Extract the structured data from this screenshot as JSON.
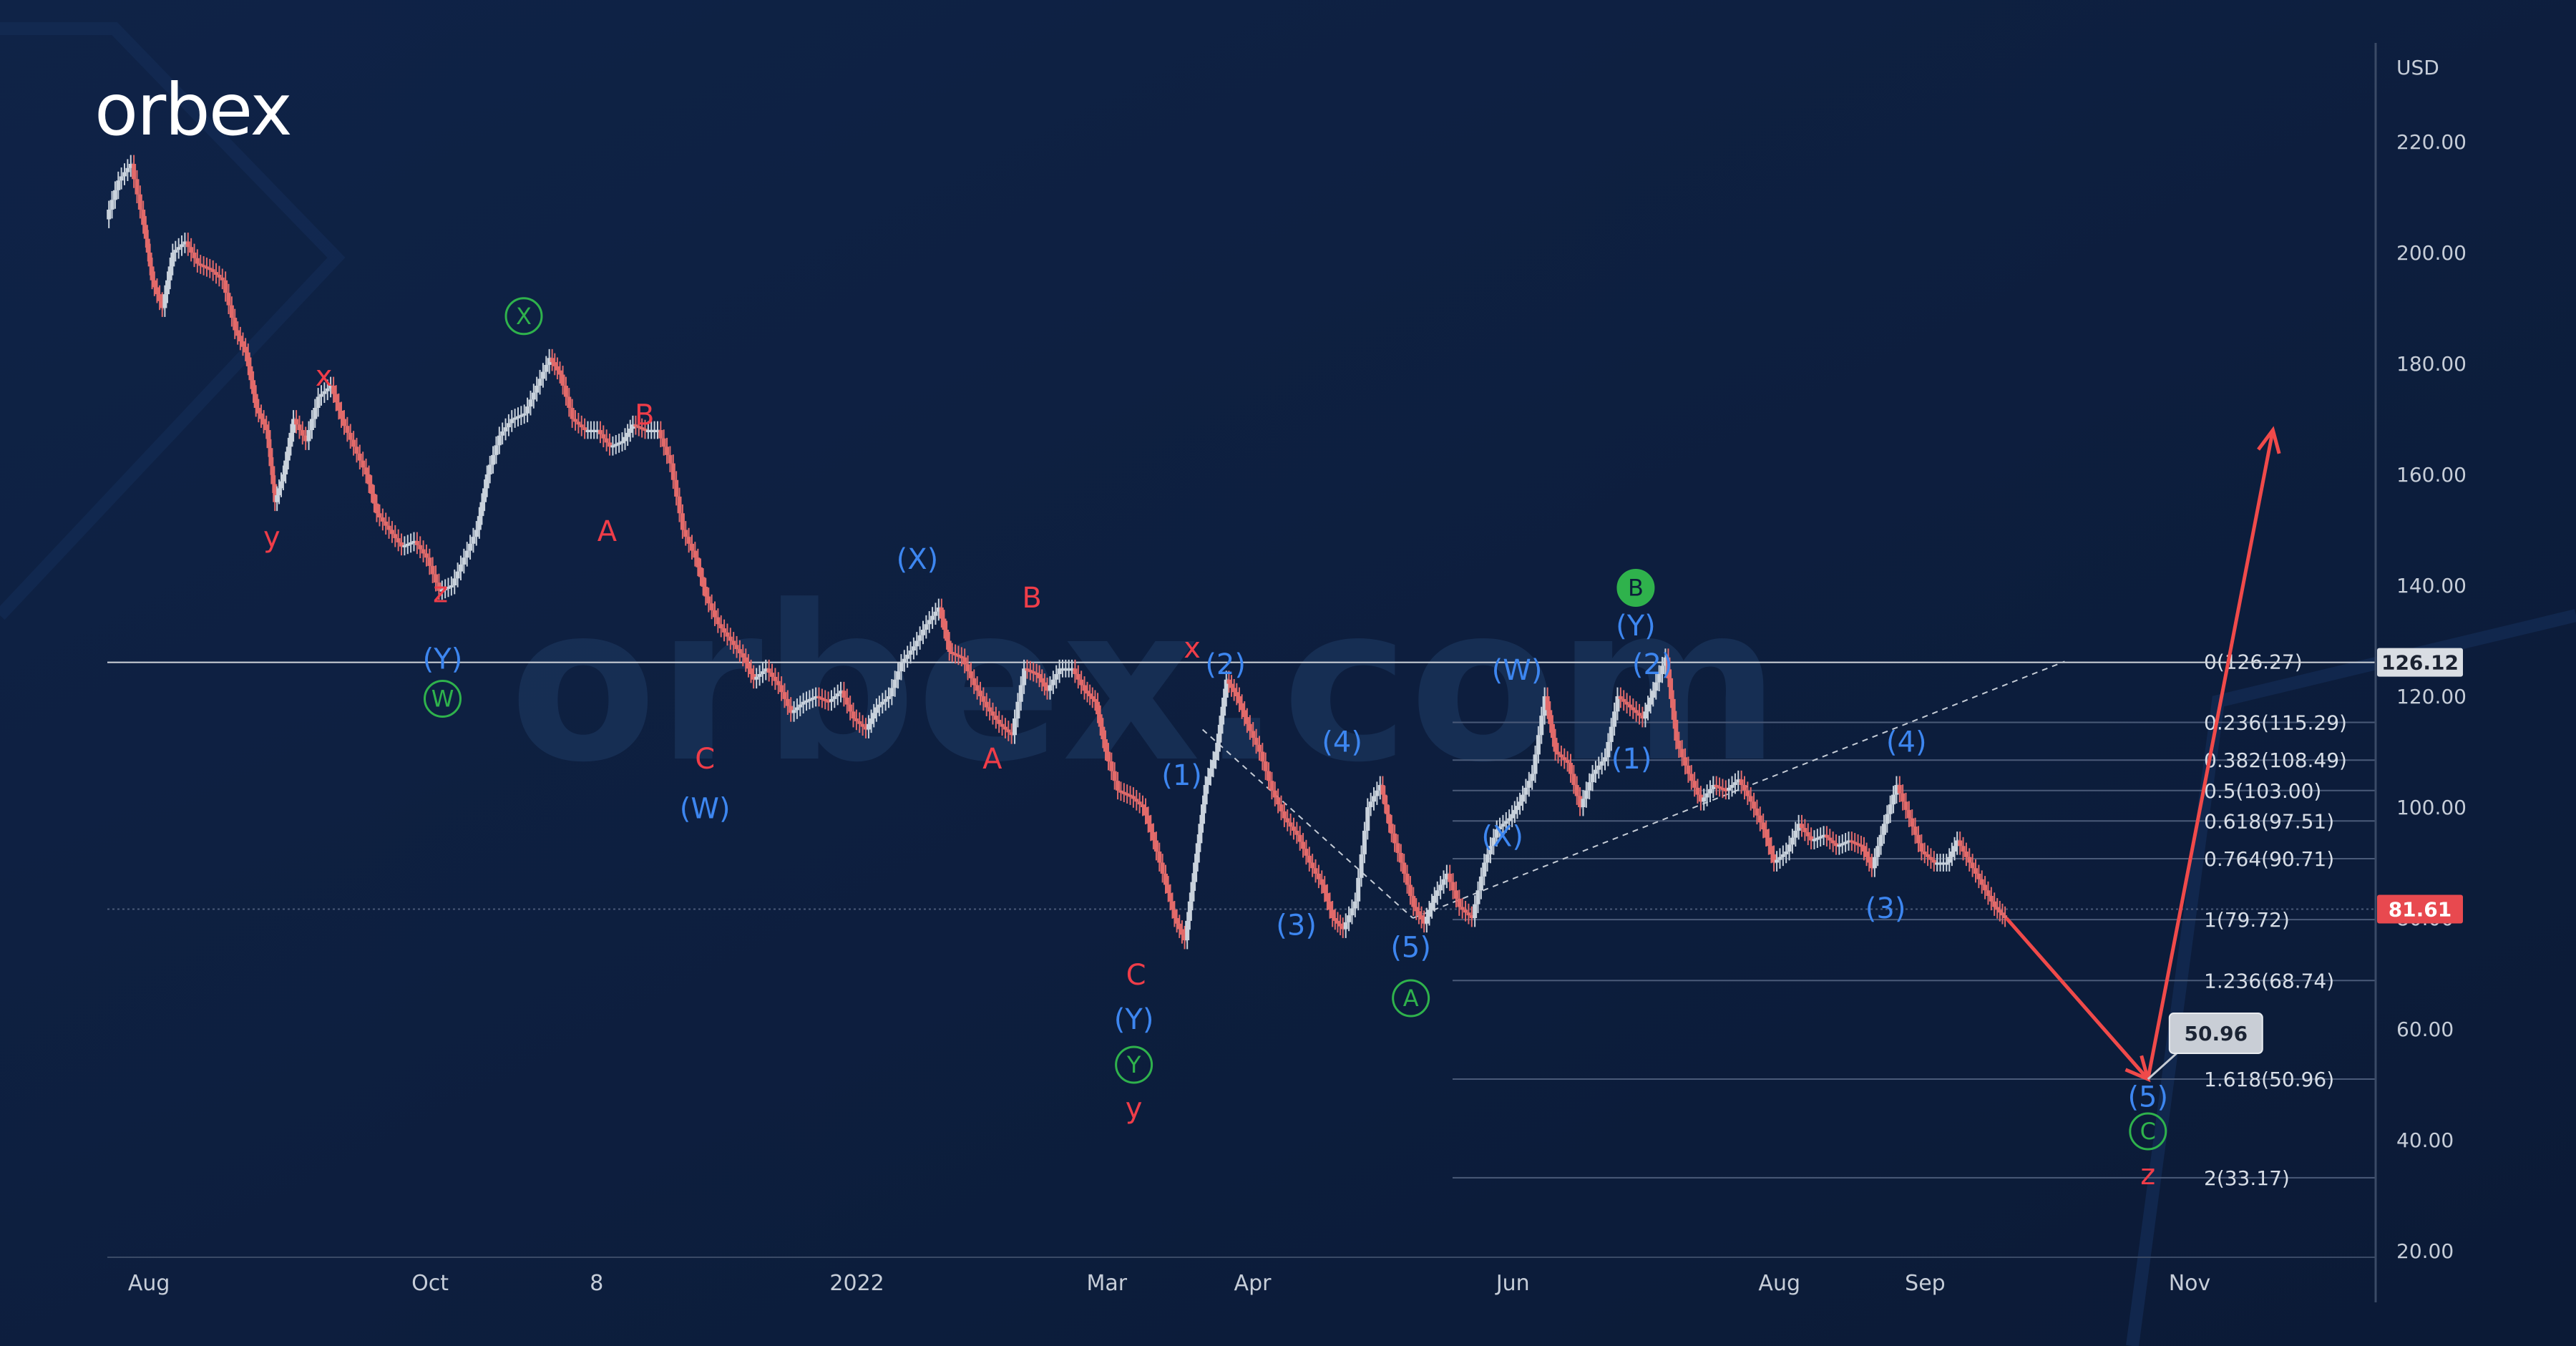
{
  "brand": {
    "logo_text": "orbex",
    "watermark": "orbex.com"
  },
  "chart_data": {
    "type": "line",
    "title": "",
    "currency": "USD",
    "y_axis": {
      "scale": "linear",
      "ylim": [
        20,
        229
      ],
      "ticks": [
        220,
        200,
        180,
        160,
        140,
        120,
        100,
        80,
        60,
        40,
        20
      ]
    },
    "x_axis": {
      "xlim": [
        0,
        100
      ],
      "ticks": [
        {
          "label": "Aug",
          "x": 2.0
        },
        {
          "label": "Oct",
          "x": 15.5
        },
        {
          "label": "8",
          "x": 23.5
        },
        {
          "label": "2022",
          "x": 36.0
        },
        {
          "label": "Mar",
          "x": 48.0
        },
        {
          "label": "Apr",
          "x": 55.0
        },
        {
          "label": "Jun",
          "x": 67.5
        },
        {
          "label": "Aug",
          "x": 80.3
        },
        {
          "label": "Sep",
          "x": 87.3
        },
        {
          "label": "Nov",
          "x": 100.0
        }
      ]
    },
    "grid": false,
    "series": [
      {
        "kind": "price",
        "color": "#c9d2dc",
        "points": [
          [
            0,
            206
          ],
          [
            0.6,
            213
          ],
          [
            1.2,
            216
          ],
          [
            1.8,
            205
          ],
          [
            2.2,
            195
          ],
          [
            2.7,
            190
          ],
          [
            3.2,
            200
          ],
          [
            3.8,
            202
          ],
          [
            4.4,
            198
          ],
          [
            5.0,
            197
          ],
          [
            5.6,
            195
          ],
          [
            6.2,
            186
          ],
          [
            6.7,
            182
          ],
          [
            7.2,
            172
          ],
          [
            7.7,
            168
          ],
          [
            8.1,
            155
          ],
          [
            8.5,
            160
          ],
          [
            9.0,
            170
          ],
          [
            9.6,
            166
          ],
          [
            10.2,
            174
          ],
          [
            10.8,
            176
          ],
          [
            11.3,
            170
          ],
          [
            11.9,
            165
          ],
          [
            12.5,
            160
          ],
          [
            13.0,
            153
          ],
          [
            13.6,
            150
          ],
          [
            14.2,
            147
          ],
          [
            14.8,
            148
          ],
          [
            15.4,
            145
          ],
          [
            16.0,
            139
          ],
          [
            16.6,
            140
          ],
          [
            17.2,
            145
          ],
          [
            17.8,
            150
          ],
          [
            18.3,
            160
          ],
          [
            18.9,
            167
          ],
          [
            19.5,
            170
          ],
          [
            20.1,
            171
          ],
          [
            20.7,
            176
          ],
          [
            21.3,
            181
          ],
          [
            21.8,
            178
          ],
          [
            22.4,
            170
          ],
          [
            23.0,
            168
          ],
          [
            23.6,
            168
          ],
          [
            24.2,
            165
          ],
          [
            24.8,
            166
          ],
          [
            25.3,
            169
          ],
          [
            25.9,
            168
          ],
          [
            26.5,
            168
          ],
          [
            27.1,
            162
          ],
          [
            27.7,
            150
          ],
          [
            28.3,
            145
          ],
          [
            28.8,
            138
          ],
          [
            29.4,
            133
          ],
          [
            30.0,
            130
          ],
          [
            30.6,
            127
          ],
          [
            31.1,
            123
          ],
          [
            31.7,
            125
          ],
          [
            32.3,
            122
          ],
          [
            32.9,
            117
          ],
          [
            33.5,
            119
          ],
          [
            34.1,
            120
          ],
          [
            34.7,
            119
          ],
          [
            35.3,
            121
          ],
          [
            35.9,
            116
          ],
          [
            36.5,
            114
          ],
          [
            37.0,
            118
          ],
          [
            37.6,
            120
          ],
          [
            38.2,
            126
          ],
          [
            38.8,
            129
          ],
          [
            39.4,
            133
          ],
          [
            40.0,
            136
          ],
          [
            40.5,
            128
          ],
          [
            41.1,
            127
          ],
          [
            41.7,
            122
          ],
          [
            42.3,
            118
          ],
          [
            42.9,
            115
          ],
          [
            43.5,
            113
          ],
          [
            44.1,
            125
          ],
          [
            44.7,
            124
          ],
          [
            45.2,
            121
          ],
          [
            45.8,
            125
          ],
          [
            46.4,
            125
          ],
          [
            47.0,
            121
          ],
          [
            47.5,
            119
          ],
          [
            48.0,
            110
          ],
          [
            48.6,
            103
          ],
          [
            49.2,
            102
          ],
          [
            49.8,
            100
          ],
          [
            50.3,
            94
          ],
          [
            50.9,
            86
          ],
          [
            51.3,
            80
          ],
          [
            51.8,
            76
          ],
          [
            52.3,
            90
          ],
          [
            52.8,
            104
          ],
          [
            53.3,
            110
          ],
          [
            53.8,
            123
          ],
          [
            54.3,
            120
          ],
          [
            54.8,
            115
          ],
          [
            55.4,
            110
          ],
          [
            56.0,
            103
          ],
          [
            56.6,
            98
          ],
          [
            57.2,
            95
          ],
          [
            57.8,
            90
          ],
          [
            58.4,
            86
          ],
          [
            58.9,
            80
          ],
          [
            59.4,
            78
          ],
          [
            60.0,
            83
          ],
          [
            60.6,
            100
          ],
          [
            61.2,
            104
          ],
          [
            61.6,
            97
          ],
          [
            62.2,
            90
          ],
          [
            62.8,
            82
          ],
          [
            63.3,
            79
          ],
          [
            63.8,
            84
          ],
          [
            64.4,
            88
          ],
          [
            65.0,
            82
          ],
          [
            65.6,
            80
          ],
          [
            66.2,
            90
          ],
          [
            66.8,
            96
          ],
          [
            67.4,
            98
          ],
          [
            67.9,
            101
          ],
          [
            68.5,
            106
          ],
          [
            69.1,
            120
          ],
          [
            69.6,
            110
          ],
          [
            70.2,
            108
          ],
          [
            70.8,
            100
          ],
          [
            71.4,
            106
          ],
          [
            72.0,
            109
          ],
          [
            72.6,
            120
          ],
          [
            73.2,
            118
          ],
          [
            73.8,
            116
          ],
          [
            74.3,
            121
          ],
          [
            74.9,
            127
          ],
          [
            75.4,
            112
          ],
          [
            76.0,
            106
          ],
          [
            76.6,
            101
          ],
          [
            77.2,
            104
          ],
          [
            77.8,
            103
          ],
          [
            78.4,
            105
          ],
          [
            79.0,
            101
          ],
          [
            79.6,
            96
          ],
          [
            80.1,
            90
          ],
          [
            80.7,
            92
          ],
          [
            81.3,
            97
          ],
          [
            81.9,
            94
          ],
          [
            82.5,
            95
          ],
          [
            83.1,
            93
          ],
          [
            83.7,
            94
          ],
          [
            84.3,
            93
          ],
          [
            84.8,
            89
          ],
          [
            85.4,
            97
          ],
          [
            86.0,
            104
          ],
          [
            86.6,
            98
          ],
          [
            87.2,
            92
          ],
          [
            87.8,
            90
          ],
          [
            88.4,
            90
          ],
          [
            88.9,
            94
          ],
          [
            89.5,
            90
          ],
          [
            90.1,
            86
          ],
          [
            90.7,
            82
          ],
          [
            91.2,
            80
          ]
        ]
      },
      {
        "kind": "forecast",
        "color": "#f04a4a",
        "points": [
          [
            91.2,
            80
          ],
          [
            98.0,
            50.96
          ],
          [
            104.0,
            168
          ]
        ]
      }
    ],
    "horizontal_lines": [
      {
        "value": 126.12,
        "label": "126.12",
        "label_bg": "#d9dde3",
        "label_color": "#1a2130",
        "line": "#d0d4da"
      },
      {
        "value": 81.61,
        "label": "81.61",
        "label_bg": "#e8494f",
        "label_color": "#ffffff",
        "line": "#4a5a78"
      }
    ],
    "fibonacci": [
      {
        "label": "0(126.27)",
        "value": 126.27
      },
      {
        "label": "0.236(115.29)",
        "value": 115.29
      },
      {
        "label": "0.382(108.49)",
        "value": 108.49
      },
      {
        "label": "0.5(103.00)",
        "value": 103.0
      },
      {
        "label": "0.618(97.51)",
        "value": 97.51
      },
      {
        "label": "0.764(90.71)",
        "value": 90.71
      },
      {
        "label": "1(79.72)",
        "value": 79.72
      },
      {
        "label": "1.236(68.74)",
        "value": 68.74
      },
      {
        "label": "1.618(50.96)",
        "value": 50.96
      },
      {
        "label": "2(33.17)",
        "value": 33.17
      }
    ],
    "fib_callout": {
      "label": "50.96",
      "x": 98.0,
      "value": 50.96
    },
    "trendlines": [
      {
        "from": [
          52.6,
          114
        ],
        "to": [
          62.7,
          80
        ]
      },
      {
        "from": [
          62.7,
          80
        ],
        "to": [
          94.0,
          126.27
        ]
      }
    ],
    "annotations": [
      {
        "text": "x",
        "x": 10.4,
        "y": 176,
        "style": "red"
      },
      {
        "text": "y",
        "x": 7.9,
        "y": 147,
        "style": "red"
      },
      {
        "text": "z",
        "x": 16.0,
        "y": 137,
        "style": "red"
      },
      {
        "text": "(Y)",
        "x": 16.1,
        "y": 125,
        "style": "blue"
      },
      {
        "text": "W",
        "x": 16.1,
        "y": 118,
        "style": "green-circle"
      },
      {
        "text": "X",
        "x": 20.0,
        "y": 187,
        "style": "green-circle"
      },
      {
        "text": "B",
        "x": 25.8,
        "y": 169,
        "style": "red"
      },
      {
        "text": "A",
        "x": 24.0,
        "y": 148,
        "style": "red"
      },
      {
        "text": "C",
        "x": 28.7,
        "y": 107,
        "style": "red"
      },
      {
        "text": "(W)",
        "x": 28.7,
        "y": 98,
        "style": "blue"
      },
      {
        "text": "(X)",
        "x": 38.9,
        "y": 143,
        "style": "blue"
      },
      {
        "text": "B",
        "x": 44.4,
        "y": 136,
        "style": "red"
      },
      {
        "text": "A",
        "x": 42.5,
        "y": 107,
        "style": "red"
      },
      {
        "text": "x",
        "x": 52.1,
        "y": 127,
        "style": "red"
      },
      {
        "text": "(2)",
        "x": 53.7,
        "y": 124,
        "style": "blue"
      },
      {
        "text": "(1)",
        "x": 51.6,
        "y": 104,
        "style": "blue"
      },
      {
        "text": "C",
        "x": 49.4,
        "y": 68,
        "style": "red"
      },
      {
        "text": "(Y)",
        "x": 49.3,
        "y": 60,
        "style": "blue"
      },
      {
        "text": "Y",
        "x": 49.3,
        "y": 52,
        "style": "green-circle"
      },
      {
        "text": "y",
        "x": 49.3,
        "y": 44,
        "style": "red"
      },
      {
        "text": "(4)",
        "x": 59.3,
        "y": 110,
        "style": "blue"
      },
      {
        "text": "(3)",
        "x": 57.1,
        "y": 77,
        "style": "blue"
      },
      {
        "text": "(5)",
        "x": 62.6,
        "y": 73,
        "style": "blue"
      },
      {
        "text": "A",
        "x": 62.6,
        "y": 64,
        "style": "green-outline"
      },
      {
        "text": "(W)",
        "x": 67.7,
        "y": 123,
        "style": "blue"
      },
      {
        "text": "(X)",
        "x": 67.0,
        "y": 93,
        "style": "blue"
      },
      {
        "text": "B",
        "x": 73.4,
        "y": 138,
        "style": "green-filled"
      },
      {
        "text": "(Y)",
        "x": 73.4,
        "y": 131,
        "style": "blue"
      },
      {
        "text": "(2)",
        "x": 74.2,
        "y": 124,
        "style": "blue"
      },
      {
        "text": "(1)",
        "x": 73.2,
        "y": 107,
        "style": "blue"
      },
      {
        "text": "(4)",
        "x": 86.4,
        "y": 110,
        "style": "blue"
      },
      {
        "text": "(3)",
        "x": 85.4,
        "y": 80,
        "style": "blue"
      },
      {
        "text": "(5)",
        "x": 98.0,
        "y": 46,
        "style": "blue"
      },
      {
        "text": "C",
        "x": 98.0,
        "y": 40,
        "style": "green-circle"
      },
      {
        "text": "z",
        "x": 98.0,
        "y": 32,
        "style": "red"
      }
    ]
  },
  "colors": {
    "background": "#0c1c3a",
    "axis_text": "#c6cdd8",
    "fib_line": "#4a5a78",
    "fib_text": "#d7dde6",
    "wave_blue": "#3d86f0",
    "wave_red": "#ef3d49",
    "wave_green": "#2fb24c",
    "candle_up": "#c9d2dc",
    "candle_down": "#e26a6a"
  }
}
